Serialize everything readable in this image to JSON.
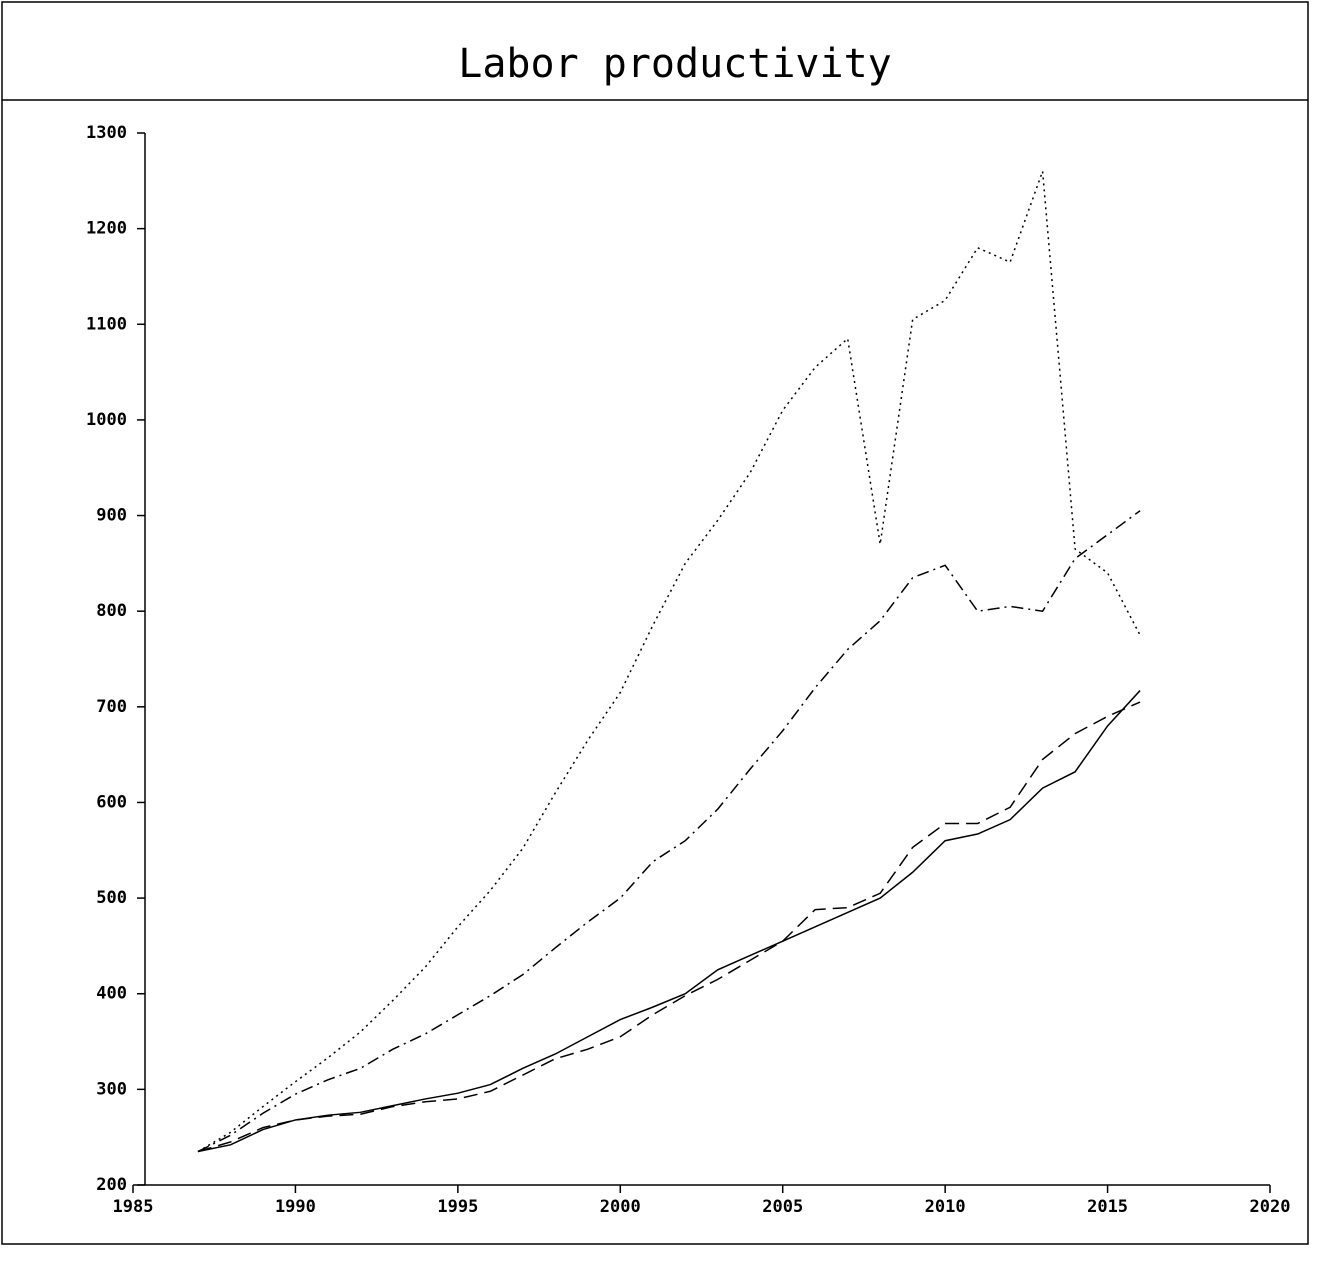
{
  "chart_data": {
    "type": "line",
    "title": "Labor productivity",
    "x": [
      1987,
      1988,
      1989,
      1990,
      1991,
      1992,
      1993,
      1994,
      1995,
      1996,
      1997,
      1998,
      1999,
      2000,
      2001,
      2002,
      2003,
      2004,
      2005,
      2006,
      2007,
      2008,
      2009,
      2010,
      2011,
      2012,
      2013,
      2014,
      2015,
      2016
    ],
    "series": [
      {
        "color": "#000000",
        "dash": "solid",
        "values": [
          235,
          242,
          258,
          268,
          273,
          276,
          283,
          290,
          296,
          305,
          322,
          337,
          355,
          373,
          386,
          400,
          425,
          440,
          455,
          470,
          485,
          500,
          527,
          560,
          567,
          582,
          615,
          632,
          680,
          717
        ]
      },
      {
        "color": "#000000",
        "dash": "dashed",
        "values": [
          235,
          245,
          260,
          268,
          272,
          274,
          282,
          287,
          290,
          298,
          315,
          332,
          342,
          355,
          378,
          398,
          415,
          435,
          455,
          488,
          490,
          505,
          553,
          578,
          578,
          595,
          645,
          672,
          690,
          705
        ]
      },
      {
        "color": "#000000",
        "dash": "dashdot",
        "values": [
          235,
          252,
          275,
          295,
          310,
          322,
          342,
          358,
          378,
          398,
          420,
          448,
          475,
          500,
          538,
          560,
          593,
          635,
          675,
          720,
          760,
          790,
          835,
          848,
          800,
          805,
          800,
          855,
          880,
          905
        ]
      },
      {
        "color": "#000000",
        "dash": "dotted",
        "values": [
          235,
          255,
          282,
          308,
          333,
          360,
          393,
          428,
          470,
          508,
          552,
          610,
          665,
          715,
          785,
          850,
          895,
          945,
          1010,
          1055,
          1085,
          870,
          1105,
          1125,
          1180,
          1165,
          1260,
          865,
          840,
          775
        ]
      }
    ],
    "xlim": [
      1985,
      2020
    ],
    "xticks": [
      1985,
      1990,
      1995,
      2000,
      2005,
      2010,
      2015,
      2020
    ],
    "ylim": [
      200,
      1300
    ],
    "yticks": [
      200,
      300,
      400,
      500,
      600,
      700,
      800,
      900,
      1000,
      1100,
      1200,
      1300
    ]
  }
}
